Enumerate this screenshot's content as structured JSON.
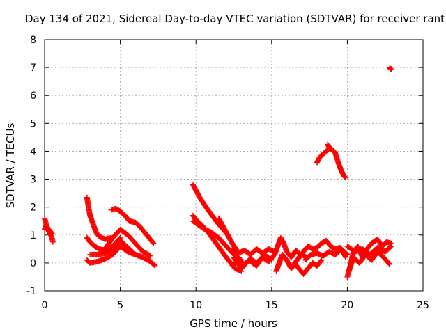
{
  "chart_data": {
    "type": "scatter",
    "title": "Day 134 of 2021, Sidereal Day-to-day VTEC variation (SDTVAR) for receiver rant",
    "xlabel": "GPS time / hours",
    "ylabel": "SDTVAR / TECUs",
    "xlim": [
      0,
      25
    ],
    "ylim": [
      -1,
      8
    ],
    "xticks": [
      0,
      5,
      10,
      15,
      20,
      25
    ],
    "yticks": [
      -1,
      0,
      1,
      2,
      3,
      4,
      5,
      6,
      7,
      8
    ],
    "grid": true,
    "marker": "plus",
    "color": "#ff0000",
    "series": [
      {
        "name": "seg-00-00",
        "x": [
          0.0,
          0.15,
          0.3,
          0.45,
          0.55
        ],
        "y": [
          1.6,
          1.3,
          1.1,
          0.95,
          0.75
        ]
      },
      {
        "name": "seg-00-01",
        "x": [
          0.0,
          0.1,
          0.2,
          0.35,
          0.5
        ],
        "y": [
          1.2,
          1.35,
          1.25,
          1.15,
          1.05
        ]
      },
      {
        "name": "seg-03-a",
        "x": [
          2.8,
          2.9,
          3.0,
          3.2,
          3.4,
          3.6,
          4.0,
          4.4
        ],
        "y": [
          2.35,
          2.0,
          1.7,
          1.4,
          1.1,
          0.95,
          0.85,
          0.9
        ]
      },
      {
        "name": "seg-03-b",
        "x": [
          2.8,
          3.0,
          3.3,
          3.6,
          4.0,
          4.5,
          5.0
        ],
        "y": [
          0.9,
          0.75,
          0.6,
          0.5,
          0.45,
          0.6,
          0.9
        ]
      },
      {
        "name": "seg-03-c",
        "x": [
          2.8,
          3.0,
          3.5,
          4.0,
          4.5,
          5.0,
          5.5,
          6.0,
          6.5,
          7.0,
          7.3
        ],
        "y": [
          0.1,
          0.0,
          0.05,
          0.15,
          0.3,
          0.6,
          0.4,
          0.3,
          0.2,
          0.05,
          -0.1
        ]
      },
      {
        "name": "seg-04-a",
        "x": [
          4.4,
          4.7,
          5.0,
          5.3,
          5.6,
          6.0,
          6.3,
          6.6,
          6.9,
          7.2
        ],
        "y": [
          1.9,
          1.95,
          1.85,
          1.7,
          1.5,
          1.45,
          1.3,
          1.1,
          0.9,
          0.7
        ]
      },
      {
        "name": "seg-04-b",
        "x": [
          4.0,
          4.5,
          5.0,
          5.5,
          6.0,
          6.5,
          7.0
        ],
        "y": [
          0.5,
          0.9,
          1.2,
          1.0,
          0.7,
          0.4,
          0.25
        ]
      },
      {
        "name": "seg-04-c",
        "x": [
          3.0,
          3.5,
          4.0,
          4.5,
          5.0,
          5.5,
          6.0
        ],
        "y": [
          0.3,
          0.3,
          0.35,
          0.5,
          0.8,
          0.55,
          0.3
        ]
      },
      {
        "name": "seg-10-a",
        "x": [
          9.8,
          10.0,
          10.3,
          10.6,
          11.0,
          11.4,
          11.8,
          12.1
        ],
        "y": [
          2.8,
          2.6,
          2.3,
          2.05,
          1.75,
          1.45,
          1.2,
          1.0
        ]
      },
      {
        "name": "seg-10-b",
        "x": [
          9.8,
          10.0,
          10.4,
          10.8,
          11.2,
          11.6,
          12.0,
          12.3,
          12.6,
          13.0
        ],
        "y": [
          1.7,
          1.55,
          1.35,
          1.1,
          0.8,
          0.5,
          0.2,
          0.0,
          -0.2,
          -0.3
        ]
      },
      {
        "name": "seg-10-c",
        "x": [
          9.8,
          10.2,
          10.6,
          11.0,
          11.5,
          12.0,
          12.5,
          13.0
        ],
        "y": [
          1.5,
          1.35,
          1.2,
          1.1,
          0.9,
          0.6,
          0.3,
          0.1
        ]
      },
      {
        "name": "seg-12-a",
        "x": [
          11.5,
          11.8,
          12.1,
          12.4,
          12.7
        ],
        "y": [
          1.6,
          1.3,
          1.0,
          0.7,
          0.45
        ]
      },
      {
        "name": "seg-13-a",
        "x": [
          12.4,
          12.8,
          13.2,
          13.6,
          14.0,
          14.4,
          14.8,
          15.2
        ],
        "y": [
          0.5,
          0.35,
          0.45,
          0.3,
          0.5,
          0.35,
          0.5,
          0.4
        ]
      },
      {
        "name": "seg-13-b",
        "x": [
          12.4,
          12.8,
          13.2,
          13.6,
          14.0,
          14.4,
          14.8,
          15.2
        ],
        "y": [
          -0.1,
          0.1,
          -0.05,
          0.15,
          0.0,
          0.2,
          0.05,
          0.3
        ]
      },
      {
        "name": "seg-13-c",
        "x": [
          12.5,
          13.0,
          13.5,
          14.0,
          14.5,
          15.0
        ],
        "y": [
          0.2,
          -0.2,
          0.1,
          -0.1,
          0.3,
          0.1
        ]
      },
      {
        "name": "seg-15-a",
        "x": [
          15.2,
          15.4,
          15.6,
          15.8,
          16.0,
          16.3,
          16.6,
          16.9
        ],
        "y": [
          0.3,
          0.6,
          0.9,
          0.7,
          0.4,
          0.2,
          0.45,
          0.3
        ]
      },
      {
        "name": "seg-15-b",
        "x": [
          15.3,
          15.5,
          15.7,
          16.0,
          16.3,
          16.6,
          17.0,
          17.3
        ],
        "y": [
          -0.3,
          0.0,
          0.3,
          0.1,
          -0.2,
          0.05,
          0.3,
          0.2
        ]
      },
      {
        "name": "seg-16-a",
        "x": [
          16.8,
          17.1,
          17.4,
          17.7,
          18.0,
          18.3,
          18.6,
          18.9,
          19.2,
          19.5,
          19.8,
          20.0
        ],
        "y": [
          0.2,
          0.4,
          0.6,
          0.5,
          0.55,
          0.7,
          0.8,
          0.6,
          0.5,
          0.55,
          0.4,
          0.3
        ]
      },
      {
        "name": "seg-16-b",
        "x": [
          16.5,
          16.8,
          17.1,
          17.4,
          17.7,
          18.0,
          18.3
        ],
        "y": [
          0.0,
          -0.2,
          -0.4,
          -0.2,
          0.0,
          -0.1,
          0.1
        ]
      },
      {
        "name": "seg-17-c",
        "x": [
          17.2,
          17.6,
          18.0,
          18.4,
          18.8,
          19.2,
          19.6,
          19.9
        ],
        "y": [
          0.1,
          0.3,
          0.35,
          0.25,
          0.4,
          0.3,
          0.5,
          0.2
        ]
      },
      {
        "name": "seg-18-hi",
        "x": [
          18.0,
          18.2,
          18.4,
          18.6,
          18.8,
          19.0,
          19.2,
          19.4,
          19.6,
          19.8,
          19.9
        ],
        "y": [
          3.6,
          3.8,
          3.9,
          4.0,
          4.1,
          4.05,
          3.95,
          3.6,
          3.3,
          3.1,
          3.05
        ]
      },
      {
        "name": "seg-18-hi2",
        "x": [
          18.7,
          18.8,
          18.9
        ],
        "y": [
          4.25,
          4.15,
          4.1
        ]
      },
      {
        "name": "seg-20-a",
        "x": [
          20.0,
          20.2,
          20.4,
          20.7,
          21.0,
          21.3,
          21.6,
          22.0,
          22.3,
          22.6,
          22.9
        ],
        "y": [
          -0.5,
          -0.1,
          0.4,
          0.6,
          0.2,
          0.5,
          0.7,
          0.85,
          0.6,
          0.75,
          0.7
        ]
      },
      {
        "name": "seg-20-b",
        "x": [
          20.1,
          20.4,
          20.8,
          21.2,
          21.6,
          22.0,
          22.4,
          22.8
        ],
        "y": [
          -0.3,
          0.2,
          0.0,
          0.3,
          0.1,
          0.4,
          0.2,
          -0.05
        ]
      },
      {
        "name": "seg-20-c",
        "x": [
          20.0,
          20.5,
          21.0,
          21.5,
          22.0,
          22.5,
          22.9
        ],
        "y": [
          0.6,
          0.4,
          0.5,
          0.3,
          0.55,
          0.4,
          0.6
        ]
      },
      {
        "name": "seg-23-outlier",
        "x": [
          22.8,
          22.85,
          22.9
        ],
        "y": [
          7.0,
          6.95,
          6.95
        ]
      }
    ]
  }
}
